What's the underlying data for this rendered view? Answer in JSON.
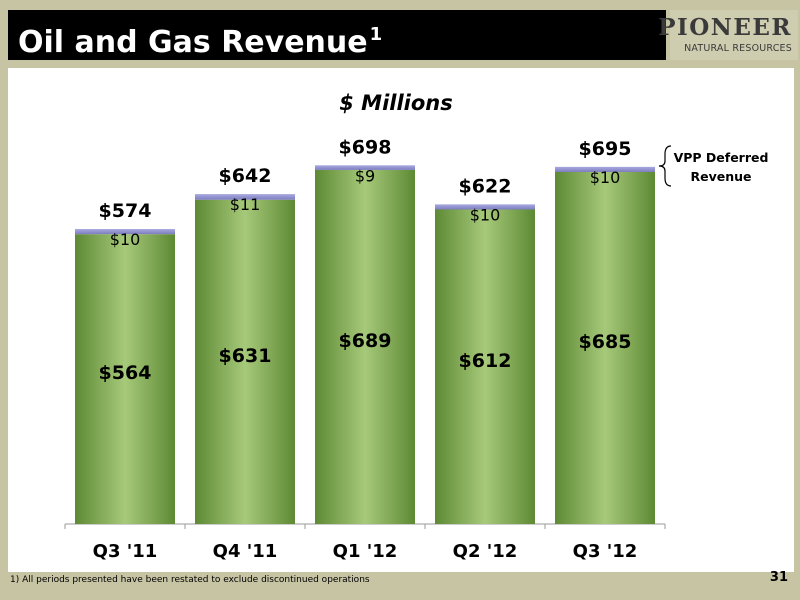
{
  "slide": {
    "title": "Oil and Gas Revenue",
    "title_superscript": "1",
    "logo_main": "PIONEER",
    "logo_sub": "NATURAL RESOURCES",
    "footnote": "1)  All periods presented have been restated to exclude discontinued operations",
    "page_number": "31"
  },
  "chart_data": {
    "type": "bar",
    "stacked": true,
    "title": "$ Millions",
    "categories": [
      "Q3 '11",
      "Q4 '11",
      "Q1 '12",
      "Q2 '12",
      "Q3 '12"
    ],
    "series": [
      {
        "name": "",
        "values": [
          564,
          631,
          689,
          612,
          685
        ],
        "labels": [
          "$564",
          "$631",
          "$689",
          "$612",
          "$685"
        ],
        "color": "#7aa14a"
      },
      {
        "name": "VPP Deferred Revenue",
        "values": [
          10,
          11,
          9,
          10,
          10
        ],
        "labels": [
          "$10",
          "$11",
          "$9",
          "$10",
          "$10"
        ],
        "color": "#8f8fd0"
      }
    ],
    "totals": [
      574,
      642,
      698,
      622,
      695
    ],
    "total_labels": [
      "$574",
      "$642",
      "$698",
      "$622",
      "$695"
    ],
    "annotation": "VPP Deferred Revenue",
    "ylim": [
      0,
      720
    ],
    "grid": false
  }
}
